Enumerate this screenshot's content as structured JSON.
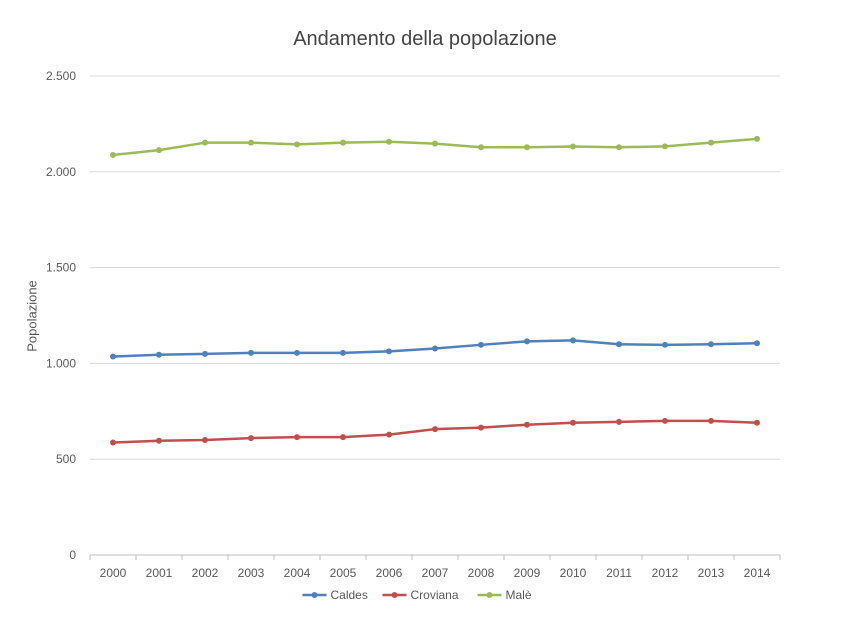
{
  "chart_data": {
    "type": "line",
    "title": "Andamento della popolazione",
    "xlabel": "",
    "ylabel": "Popolazione",
    "x": [
      "2000",
      "2001",
      "2002",
      "2003",
      "2004",
      "2005",
      "2006",
      "2007",
      "2008",
      "2009",
      "2010",
      "2011",
      "2012",
      "2013",
      "2014"
    ],
    "ylim": [
      0,
      2500
    ],
    "yticks": [
      0,
      500,
      1000,
      1500,
      2000,
      2500
    ],
    "ytick_labels": [
      "0",
      "500",
      "1.000",
      "1.500",
      "2.000",
      "2.500"
    ],
    "grid": true,
    "legend_position": "bottom",
    "series": [
      {
        "name": "Caldes",
        "color": "#4f81bd",
        "values": [
          1036,
          1045,
          1050,
          1055,
          1055,
          1055,
          1063,
          1078,
          1097,
          1115,
          1120,
          1100,
          1097,
          1100,
          1105
        ]
      },
      {
        "name": "Croviana",
        "color": "#c0504d",
        "values": [
          587,
          596,
          600,
          610,
          615,
          615,
          628,
          657,
          665,
          680,
          690,
          695,
          700,
          700,
          690
        ]
      },
      {
        "name": "Malè",
        "color": "#9bbb59",
        "values": [
          2088,
          2113,
          2152,
          2152,
          2143,
          2152,
          2157,
          2147,
          2128,
          2128,
          2132,
          2128,
          2133,
          2152,
          2172
        ]
      }
    ]
  }
}
